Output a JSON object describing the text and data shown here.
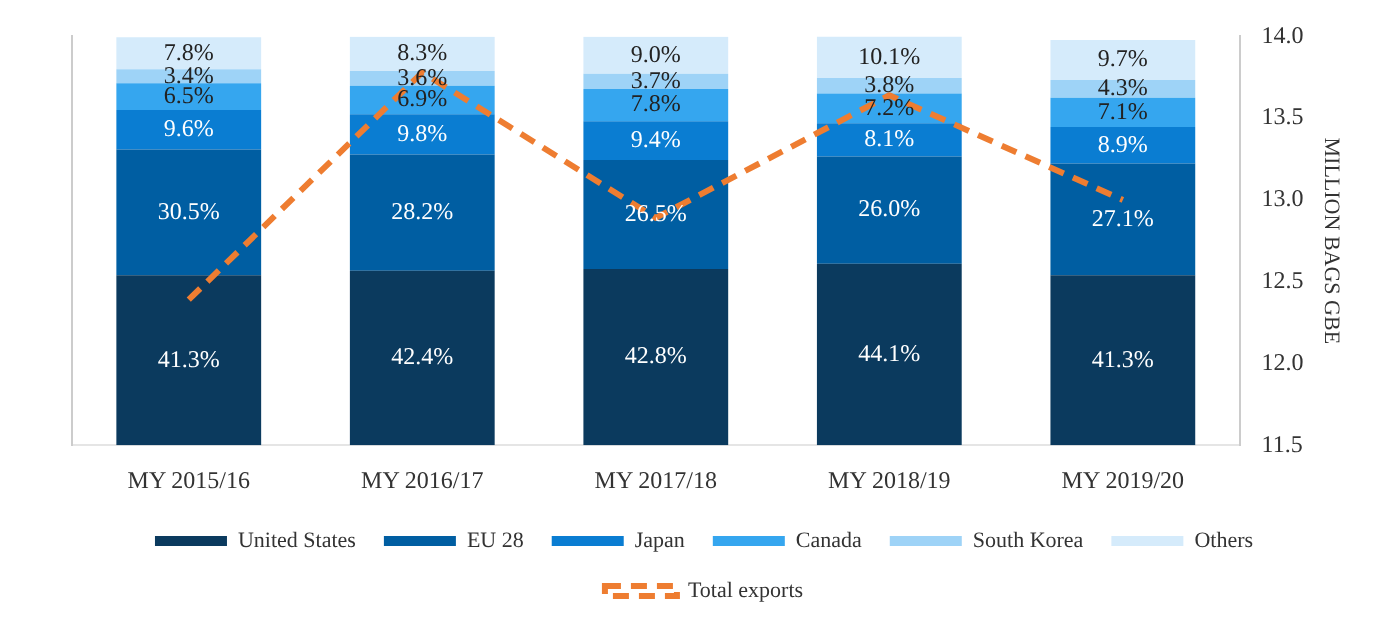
{
  "chart_data": {
    "type": "bar",
    "stacked": true,
    "categories": [
      "MY 2015/16",
      "MY 2016/17",
      "MY 2017/18",
      "MY 2018/19",
      "MY 2019/20"
    ],
    "series": [
      {
        "name": "United States",
        "color": "#0b3a5e",
        "values": [
          41.3,
          42.4,
          42.8,
          44.1,
          41.3
        ],
        "value_labels": [
          "41.3%",
          "42.4%",
          "42.8%",
          "44.1%",
          "41.3%"
        ]
      },
      {
        "name": "EU 28",
        "color": "#005ea2",
        "values": [
          30.5,
          28.2,
          26.5,
          26.0,
          27.1
        ],
        "value_labels": [
          "30.5%",
          "28.2%",
          "26.5%",
          "26.0%",
          "27.1%"
        ]
      },
      {
        "name": "Japan",
        "color": "#0a7dd2",
        "values": [
          9.6,
          9.8,
          9.4,
          8.1,
          8.9
        ],
        "value_labels": [
          "9.6%",
          "9.8%",
          "9.4%",
          "8.1%",
          "8.9%"
        ]
      },
      {
        "name": "Canada",
        "color": "#35a6ef",
        "values": [
          6.5,
          6.9,
          7.8,
          7.2,
          7.1
        ],
        "value_labels": [
          "6.5%",
          "6.9%",
          "7.8%",
          "7.2%",
          "7.1%"
        ]
      },
      {
        "name": "South Korea",
        "color": "#9ed3f7",
        "values": [
          3.4,
          3.6,
          3.7,
          3.8,
          4.3
        ],
        "value_labels": [
          "3.4%",
          "3.6%",
          "3.7%",
          "3.8%",
          "4.3%"
        ]
      },
      {
        "name": "Others",
        "color": "#d5ebfb",
        "values": [
          7.8,
          8.3,
          9.0,
          10.1,
          9.7
        ],
        "value_labels": [
          "7.8%",
          "8.3%",
          "9.0%",
          "10.1%",
          "9.7%"
        ]
      },
      {
        "name": "Total exports",
        "type": "line",
        "axis": "y2",
        "color": "#ee7d31",
        "line_style": "dashed",
        "marker": "none",
        "values": [
          12.39,
          13.78,
          12.89,
          13.64,
          13.0
        ]
      }
    ],
    "y2label": "MILLION BAGS GBE",
    "y2lim": [
      11.5,
      14.0
    ],
    "y2ticks": [
      11.5,
      {
        "value": 12,
        "label": "12.0"
      },
      12.5,
      {
        "value": 13,
        "label": "13.0"
      },
      13.5,
      {
        "value": 14,
        "label": "14.0"
      }
    ],
    "grid": false,
    "legend": "bottom"
  }
}
